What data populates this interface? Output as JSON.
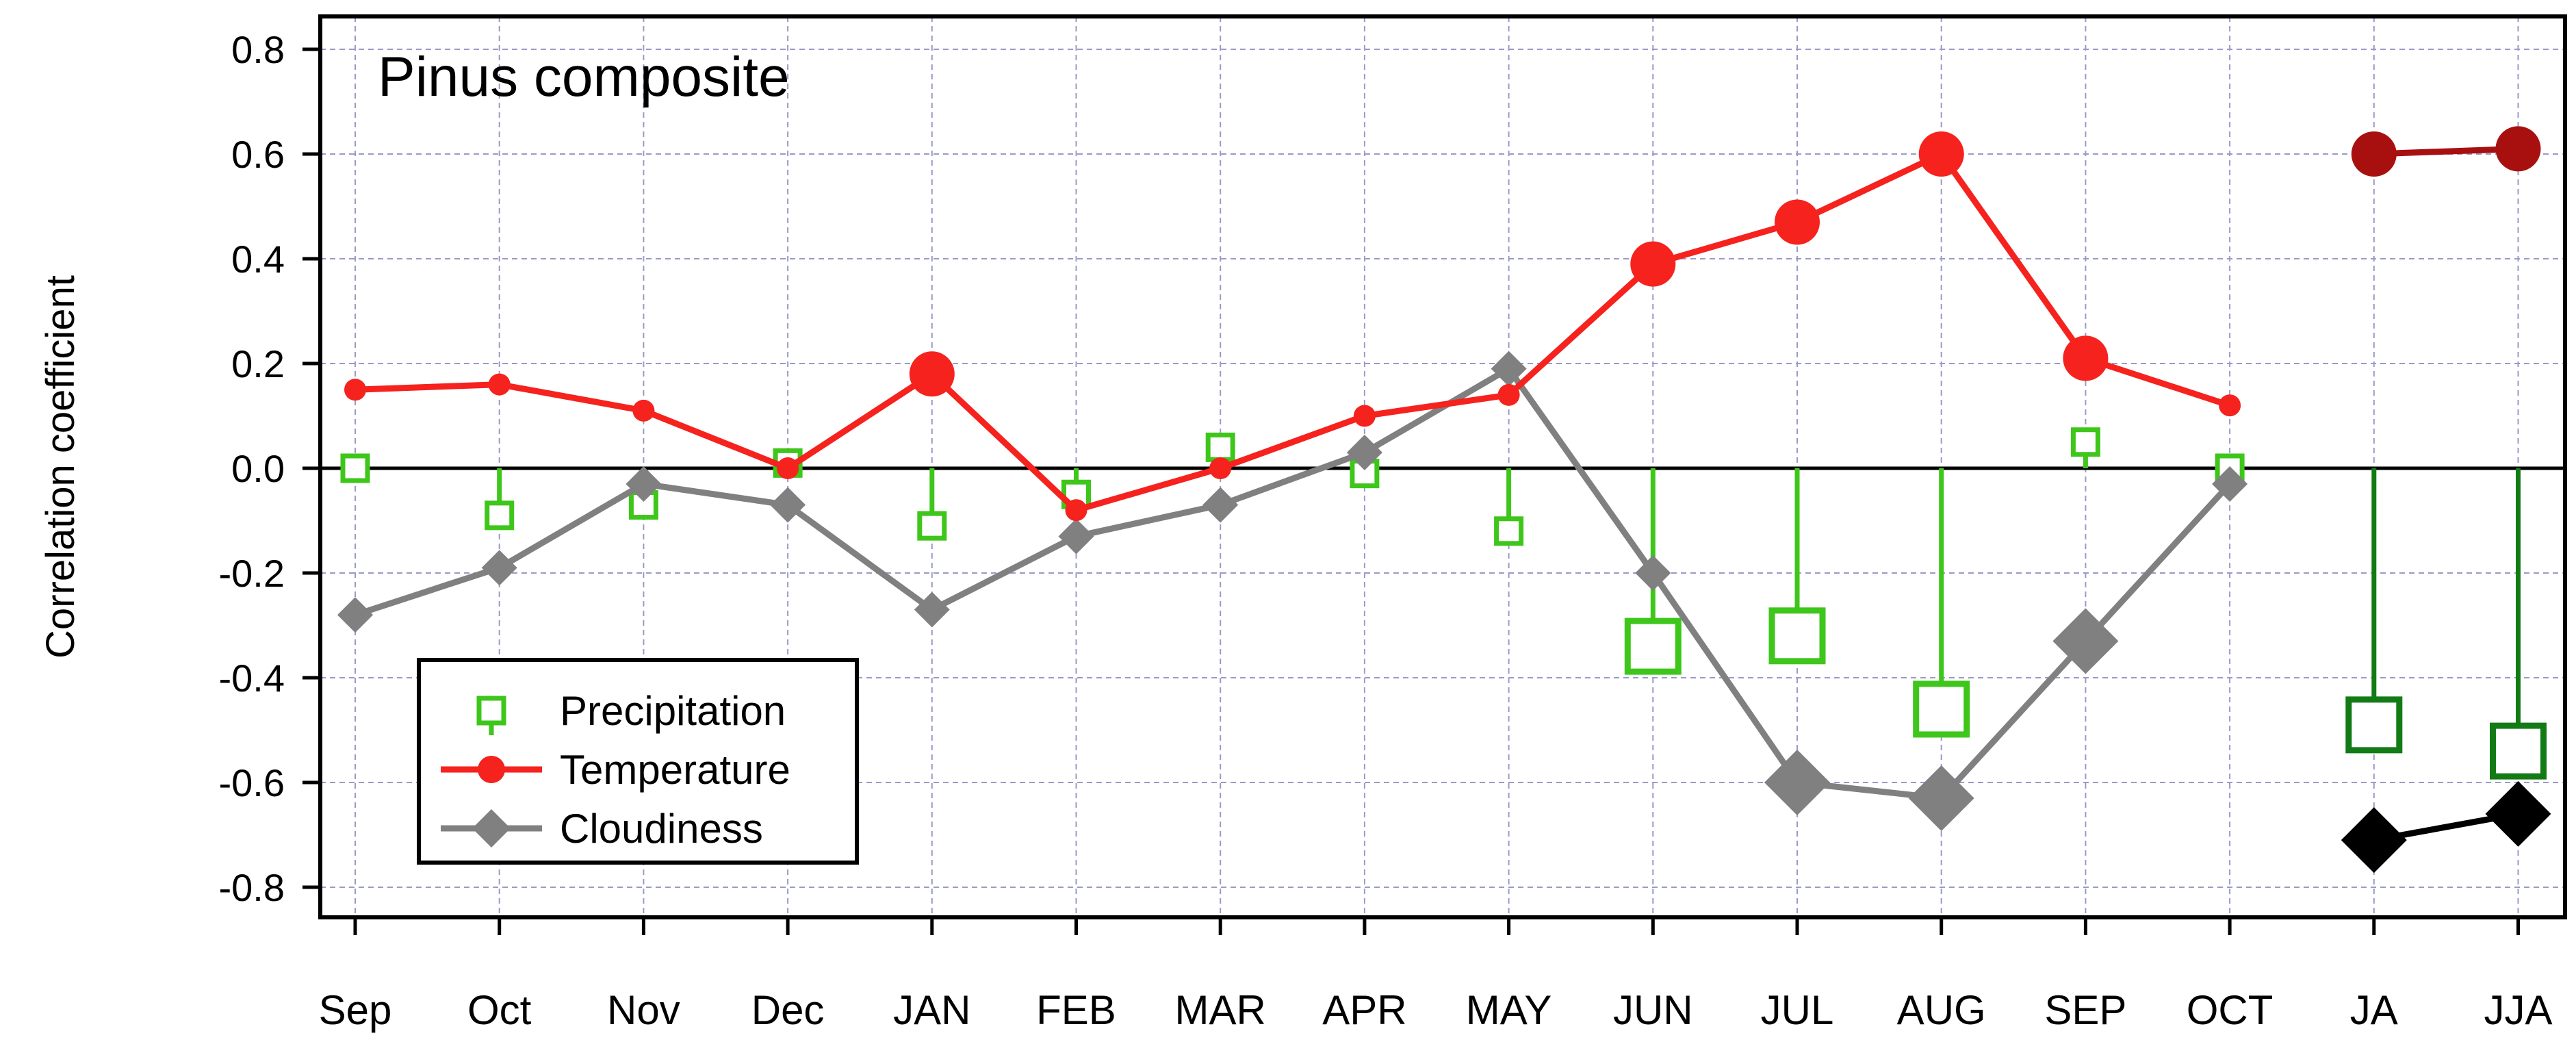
{
  "chart_data": {
    "type": "line",
    "title": "Pinus composite",
    "xlabel": "",
    "ylabel": "Correlation coefficient",
    "categories": [
      "Sep",
      "Oct",
      "Nov",
      "Dec",
      "JAN",
      "FEB",
      "MAR",
      "APR",
      "MAY",
      "JUN",
      "JUL",
      "AUG",
      "SEP",
      "OCT",
      "JA",
      "JJA"
    ],
    "ylim": [
      -0.85,
      0.85
    ],
    "yticks": [
      "0.8",
      "0.6",
      "0.4",
      "0.2",
      "0.0",
      "-0.2",
      "-0.4",
      "-0.6",
      "-0.8"
    ],
    "grid": true,
    "legend_position": "bottom-left",
    "series": [
      {
        "name": "Precipitation",
        "style": "stems",
        "color": "#3ec61b",
        "summary_color": "#137b16",
        "values": [
          0.0,
          -0.09,
          -0.07,
          0.01,
          -0.11,
          -0.05,
          0.04,
          -0.01,
          -0.12,
          -0.34,
          -0.32,
          -0.46,
          0.05,
          0.0,
          -0.49,
          -0.54
        ],
        "significant": [
          false,
          false,
          false,
          false,
          false,
          false,
          false,
          false,
          false,
          true,
          true,
          true,
          false,
          false,
          true,
          true
        ]
      },
      {
        "name": "Temperature",
        "style": "line",
        "color": "#f5221e",
        "summary_color": "#a8100f",
        "values": [
          0.15,
          0.16,
          0.11,
          0.0,
          0.18,
          -0.08,
          0.0,
          0.1,
          0.14,
          0.39,
          0.47,
          0.6,
          0.21,
          0.12,
          0.6,
          0.61
        ],
        "significant": [
          false,
          false,
          false,
          false,
          true,
          false,
          false,
          false,
          false,
          true,
          true,
          true,
          true,
          false,
          true,
          true
        ]
      },
      {
        "name": "Cloudiness",
        "style": "line",
        "color": "#808080",
        "summary_color": "#000000",
        "values": [
          -0.28,
          -0.19,
          -0.03,
          -0.07,
          -0.27,
          -0.13,
          -0.07,
          0.03,
          0.19,
          -0.2,
          -0.6,
          -0.63,
          -0.33,
          -0.03,
          -0.71,
          -0.66
        ],
        "significant": [
          false,
          false,
          false,
          false,
          false,
          false,
          false,
          false,
          false,
          false,
          true,
          true,
          true,
          false,
          true,
          true
        ]
      }
    ]
  }
}
